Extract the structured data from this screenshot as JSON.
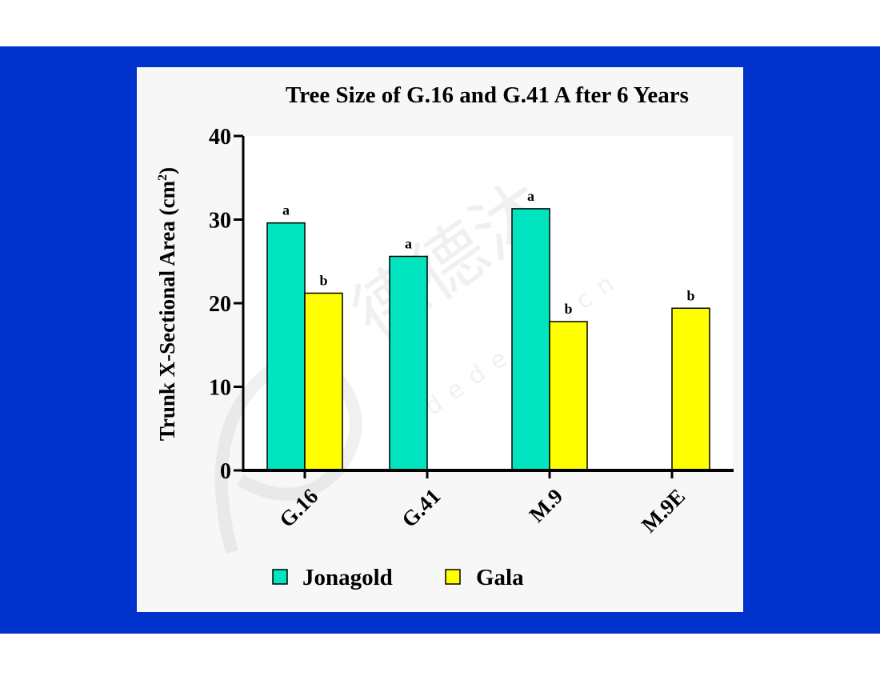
{
  "chart_data": {
    "type": "bar",
    "title": "Tree Size of G.16 and G.41 A fter 6 Years",
    "ylabel": "Trunk X-Sectional Area (cm",
    "ylabel_sup": "2",
    "ylabel_close": ")",
    "xlabel": "",
    "ylim": [
      0,
      40
    ],
    "yticks": [
      0,
      10,
      20,
      30,
      40
    ],
    "categories": [
      "G.16",
      "G.41",
      "M.9",
      "M.9E"
    ],
    "series": [
      {
        "name": "Jonagold",
        "color": "#00e5c0",
        "values": [
          29.6,
          25.6,
          31.3,
          null
        ],
        "labels": [
          "a",
          "a",
          "a",
          ""
        ]
      },
      {
        "name": "Gala",
        "color": "#ffff00",
        "values": [
          21.2,
          null,
          17.8,
          19.4
        ],
        "labels": [
          "b",
          "",
          "b",
          "b"
        ]
      }
    ],
    "legend": "bottom",
    "grid": false
  },
  "watermark": {
    "text": "德沐",
    "subtext": "dedemu.cn"
  },
  "colors": {
    "slide_background": "#0033cc",
    "panel": "#f7f7f7"
  }
}
